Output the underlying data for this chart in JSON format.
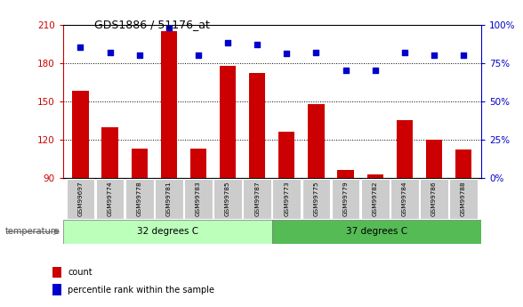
{
  "title": "GDS1886 / 51176_at",
  "samples": [
    "GSM99697",
    "GSM99774",
    "GSM99778",
    "GSM99781",
    "GSM99783",
    "GSM99785",
    "GSM99787",
    "GSM99773",
    "GSM99775",
    "GSM99779",
    "GSM99782",
    "GSM99784",
    "GSM99786",
    "GSM99788"
  ],
  "counts": [
    158,
    130,
    113,
    205,
    113,
    178,
    172,
    126,
    148,
    96,
    93,
    135,
    120,
    112
  ],
  "percentile": [
    85,
    82,
    80,
    98,
    80,
    88,
    87,
    81,
    82,
    70,
    70,
    82,
    80,
    80
  ],
  "group1_label": "32 degrees C",
  "group2_label": "37 degrees C",
  "group1_count": 7,
  "group2_count": 7,
  "ylim_left": [
    90,
    210
  ],
  "ylim_right": [
    0,
    100
  ],
  "yticks_left": [
    90,
    120,
    150,
    180,
    210
  ],
  "yticks_right": [
    0,
    25,
    50,
    75,
    100
  ],
  "bar_color": "#cc0000",
  "dot_color": "#0000cc",
  "group1_bg": "#bbffbb",
  "group2_bg": "#55bb55",
  "sample_bg": "#cccccc",
  "legend_count_label": "count",
  "legend_pct_label": "percentile rank within the sample",
  "temperature_label": "temperature",
  "bar_bottom": 90
}
